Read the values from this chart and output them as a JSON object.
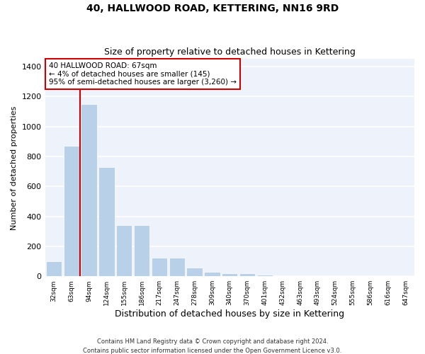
{
  "title": "40, HALLWOOD ROAD, KETTERING, NN16 9RD",
  "subtitle": "Size of property relative to detached houses in Kettering",
  "xlabel": "Distribution of detached houses by size in Kettering",
  "ylabel": "Number of detached properties",
  "categories": [
    "32sqm",
    "63sqm",
    "94sqm",
    "124sqm",
    "155sqm",
    "186sqm",
    "217sqm",
    "247sqm",
    "278sqm",
    "309sqm",
    "340sqm",
    "370sqm",
    "401sqm",
    "432sqm",
    "463sqm",
    "493sqm",
    "524sqm",
    "555sqm",
    "586sqm",
    "616sqm",
    "647sqm"
  ],
  "bar_values": [
    100,
    870,
    1150,
    730,
    340,
    340,
    125,
    125,
    60,
    30,
    22,
    18,
    12,
    0,
    0,
    0,
    0,
    0,
    0,
    0,
    0
  ],
  "bar_color": "#b8d0e8",
  "marker_line_color": "#cc0000",
  "ylim": [
    0,
    1450
  ],
  "yticks": [
    0,
    200,
    400,
    600,
    800,
    1000,
    1200,
    1400
  ],
  "annotation_text": "40 HALLWOOD ROAD: 67sqm\n← 4% of detached houses are smaller (145)\n95% of semi-detached houses are larger (3,260) →",
  "annotation_box_color": "#ffffff",
  "annotation_border_color": "#cc0000",
  "footnote1": "Contains HM Land Registry data © Crown copyright and database right 2024.",
  "footnote2": "Contains public sector information licensed under the Open Government Licence v3.0.",
  "bg_color": "#eef2fa",
  "grid_color": "#ffffff",
  "fig_bg_color": "#ffffff",
  "title_fontsize": 10,
  "subtitle_fontsize": 9,
  "ylabel_fontsize": 8,
  "xlabel_fontsize": 9
}
